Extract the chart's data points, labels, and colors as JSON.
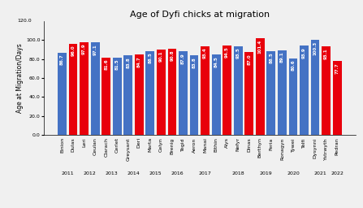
{
  "title": "Age of Dyfi chicks at migration",
  "ylabel": "Age at Migration/Days",
  "bars": [
    {
      "name": "Einion",
      "value": 86.7,
      "color": "#4472C4",
      "year": "2011"
    },
    {
      "name": "Dulas",
      "value": 96.0,
      "color": "#E8000B",
      "year": "2011"
    },
    {
      "name": "Leri",
      "value": 97.9,
      "color": "#E8000B",
      "year": "2012"
    },
    {
      "name": "Ceulan",
      "value": 97.1,
      "color": "#4472C4",
      "year": "2012"
    },
    {
      "name": "Clarach",
      "value": 81.6,
      "color": "#E8000B",
      "year": "2013"
    },
    {
      "name": "Cerlet",
      "value": 81.5,
      "color": "#4472C4",
      "year": "2013"
    },
    {
      "name": "Greysant",
      "value": 83.8,
      "color": "#4472C4",
      "year": "2014"
    },
    {
      "name": "Deri",
      "value": 84.7,
      "color": "#E8000B",
      "year": "2014"
    },
    {
      "name": "Marta",
      "value": 88.5,
      "color": "#4472C4",
      "year": "2015"
    },
    {
      "name": "Celyn",
      "value": 90.1,
      "color": "#E8000B",
      "year": "2015"
    },
    {
      "name": "Brenig",
      "value": 90.8,
      "color": "#E8000B",
      "year": "2016"
    },
    {
      "name": "Tegid",
      "value": 87.9,
      "color": "#4472C4",
      "year": "2016"
    },
    {
      "name": "Aeron",
      "value": 83.8,
      "color": "#4472C4",
      "year": "2017"
    },
    {
      "name": "Manai",
      "value": 93.4,
      "color": "#E8000B",
      "year": "2017"
    },
    {
      "name": "Eithin",
      "value": 84.5,
      "color": "#4472C4",
      "year": "2017"
    },
    {
      "name": "Alys",
      "value": 94.5,
      "color": "#E8000B",
      "year": "2018"
    },
    {
      "name": "Nefyr",
      "value": 93.5,
      "color": "#4472C4",
      "year": "2018"
    },
    {
      "name": "Dinas",
      "value": 87.0,
      "color": "#E8000B",
      "year": "2018"
    },
    {
      "name": "Berthyn",
      "value": 101.4,
      "color": "#E8000B",
      "year": "2019"
    },
    {
      "name": "Feria",
      "value": 88.5,
      "color": "#4472C4",
      "year": "2019"
    },
    {
      "name": "Ronagyn",
      "value": 89.1,
      "color": "#4472C4",
      "year": "2020"
    },
    {
      "name": "Tywei",
      "value": 80.6,
      "color": "#4472C4",
      "year": "2020"
    },
    {
      "name": "Telfi",
      "value": 93.9,
      "color": "#4472C4",
      "year": "2020"
    },
    {
      "name": "Dysynni",
      "value": 100.3,
      "color": "#4472C4",
      "year": "2021"
    },
    {
      "name": "Ystrwyth",
      "value": 93.1,
      "color": "#E8000B",
      "year": "2021"
    },
    {
      "name": "Pedran",
      "value": 77.7,
      "color": "#E8000B",
      "year": "2022"
    }
  ],
  "ylim": [
    0,
    120
  ],
  "yticks": [
    0.0,
    20.0,
    40.0,
    60.0,
    80.0,
    100.0
  ],
  "ytick_top": "120.0",
  "bar_width": 0.8,
  "title_fontsize": 8,
  "axis_label_fontsize": 5.5,
  "tick_fontsize": 4.5,
  "value_fontsize": 4.0,
  "year_fontsize": 4.5,
  "fig_bg": "#f0f0f0"
}
